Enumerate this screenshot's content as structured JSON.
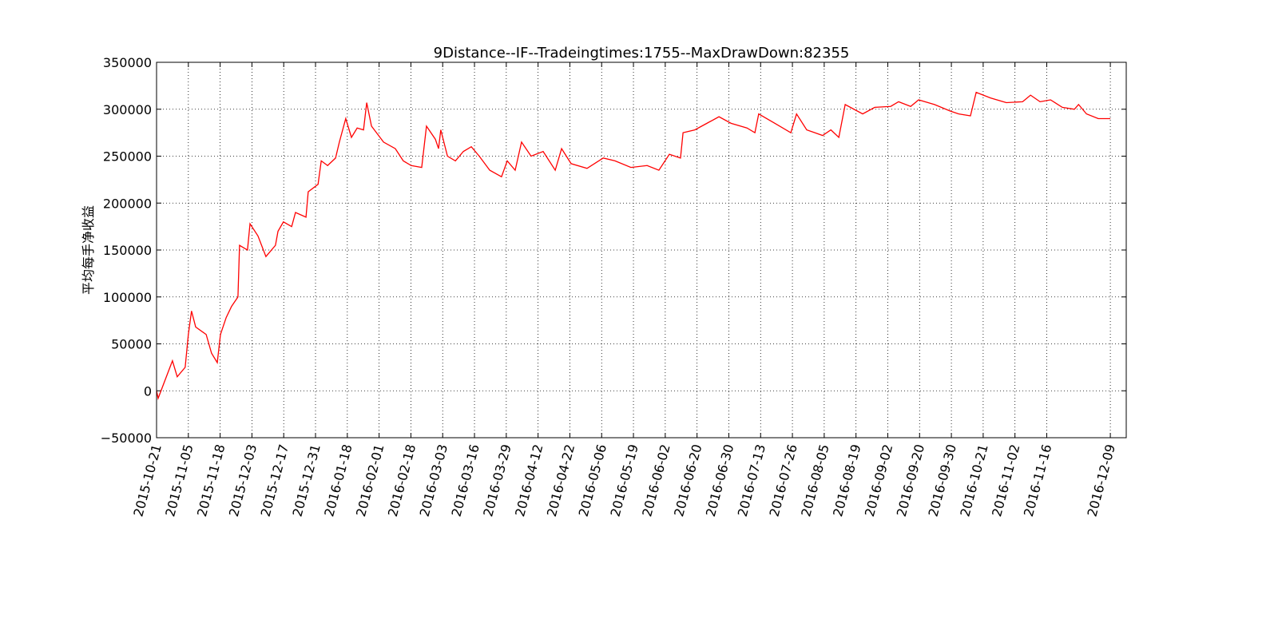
{
  "chart_data": {
    "type": "line",
    "title": "9Distance--IF--Tradeingtimes:1755--MaxDrawDown:82355",
    "y_label": "平均每手净收益",
    "x": [
      0,
      5,
      50,
      65,
      90,
      100,
      110,
      123,
      156,
      173,
      191,
      201,
      219,
      236,
      256,
      261,
      286,
      294,
      319,
      344,
      374,
      382,
      399,
      425,
      437,
      470,
      477,
      508,
      518,
      538,
      563,
      575,
      595,
      613,
      631,
      651,
      661,
      676,
      714,
      751,
      776,
      801,
      834,
      849,
      877,
      887,
      894,
      915,
      940,
      965,
      990,
      1015,
      1048,
      1085,
      1103,
      1128,
      1148,
      1178,
      1216,
      1254,
      1274,
      1304,
      1354,
      1405,
      1442,
      1492,
      1543,
      1580,
      1613,
      1648,
      1656,
      1693,
      1731,
      1769,
      1807,
      1857,
      1882,
      1894,
      1945,
      1995,
      2013,
      2045,
      2095,
      2121,
      2146,
      2166,
      2221,
      2259,
      2309,
      2334,
      2372,
      2397,
      2447,
      2497,
      2523,
      2560,
      2578,
      2623,
      2673,
      2724,
      2749,
      2779,
      2812,
      2849,
      2887,
      2900,
      2925,
      2962,
      3000
    ],
    "series": [
      {
        "color": "#ff0000",
        "values": [
          0,
          -8000,
          32000,
          15000,
          25000,
          60000,
          85000,
          68000,
          60000,
          40000,
          30000,
          60000,
          78000,
          90000,
          100000,
          155000,
          150000,
          178000,
          165000,
          143000,
          155000,
          170000,
          180000,
          175000,
          190000,
          185000,
          212000,
          220000,
          245000,
          240000,
          248000,
          265000,
          290000,
          270000,
          280000,
          278000,
          307000,
          282000,
          265000,
          258000,
          245000,
          240000,
          238000,
          282000,
          268000,
          258000,
          278000,
          250000,
          245000,
          255000,
          260000,
          250000,
          235000,
          228000,
          245000,
          235000,
          265000,
          250000,
          255000,
          235000,
          258000,
          242000,
          237000,
          248000,
          245000,
          238000,
          240000,
          235000,
          252000,
          248000,
          275000,
          278000,
          285000,
          292000,
          285000,
          280000,
          275000,
          295000,
          285000,
          275000,
          295000,
          278000,
          272000,
          278000,
          270000,
          305000,
          295000,
          302000,
          303000,
          308000,
          303000,
          310000,
          305000,
          298000,
          295000,
          293000,
          318000,
          312000,
          307000,
          308000,
          315000,
          308000,
          310000,
          302000,
          300000,
          305000,
          295000,
          290000,
          290000
        ]
      }
    ],
    "xlim": [
      0,
      3050
    ],
    "xticks": [
      {
        "value": 0,
        "label": "2015-10-21"
      },
      {
        "value": 100,
        "label": "2015-11-05"
      },
      {
        "value": 200,
        "label": "2015-11-18"
      },
      {
        "value": 300,
        "label": "2015-12-03"
      },
      {
        "value": 400,
        "label": "2015-12-17"
      },
      {
        "value": 500,
        "label": "2015-12-31"
      },
      {
        "value": 600,
        "label": "2016-01-18"
      },
      {
        "value": 700,
        "label": "2016-02-01"
      },
      {
        "value": 800,
        "label": "2016-02-18"
      },
      {
        "value": 900,
        "label": "2016-03-03"
      },
      {
        "value": 1000,
        "label": "2016-03-16"
      },
      {
        "value": 1100,
        "label": "2016-03-29"
      },
      {
        "value": 1200,
        "label": "2016-04-12"
      },
      {
        "value": 1300,
        "label": "2016-04-22"
      },
      {
        "value": 1400,
        "label": "2016-05-06"
      },
      {
        "value": 1500,
        "label": "2016-05-19"
      },
      {
        "value": 1600,
        "label": "2016-06-02"
      },
      {
        "value": 1700,
        "label": "2016-06-20"
      },
      {
        "value": 1800,
        "label": "2016-06-30"
      },
      {
        "value": 1900,
        "label": "2016-07-13"
      },
      {
        "value": 2000,
        "label": "2016-07-26"
      },
      {
        "value": 2100,
        "label": "2016-08-05"
      },
      {
        "value": 2200,
        "label": "2016-08-19"
      },
      {
        "value": 2300,
        "label": "2016-09-02"
      },
      {
        "value": 2400,
        "label": "2016-09-20"
      },
      {
        "value": 2500,
        "label": "2016-09-30"
      },
      {
        "value": 2600,
        "label": "2016-10-21"
      },
      {
        "value": 2700,
        "label": "2016-11-02"
      },
      {
        "value": 2800,
        "label": "2016-11-16"
      },
      {
        "value": 3000,
        "label": "2016-12-09"
      }
    ],
    "ylim": [
      -50000,
      350000
    ],
    "yticks": [
      {
        "value": -50000,
        "label": "−50000"
      },
      0,
      50000,
      100000,
      150000,
      200000,
      250000,
      300000,
      350000
    ],
    "grid": true
  }
}
